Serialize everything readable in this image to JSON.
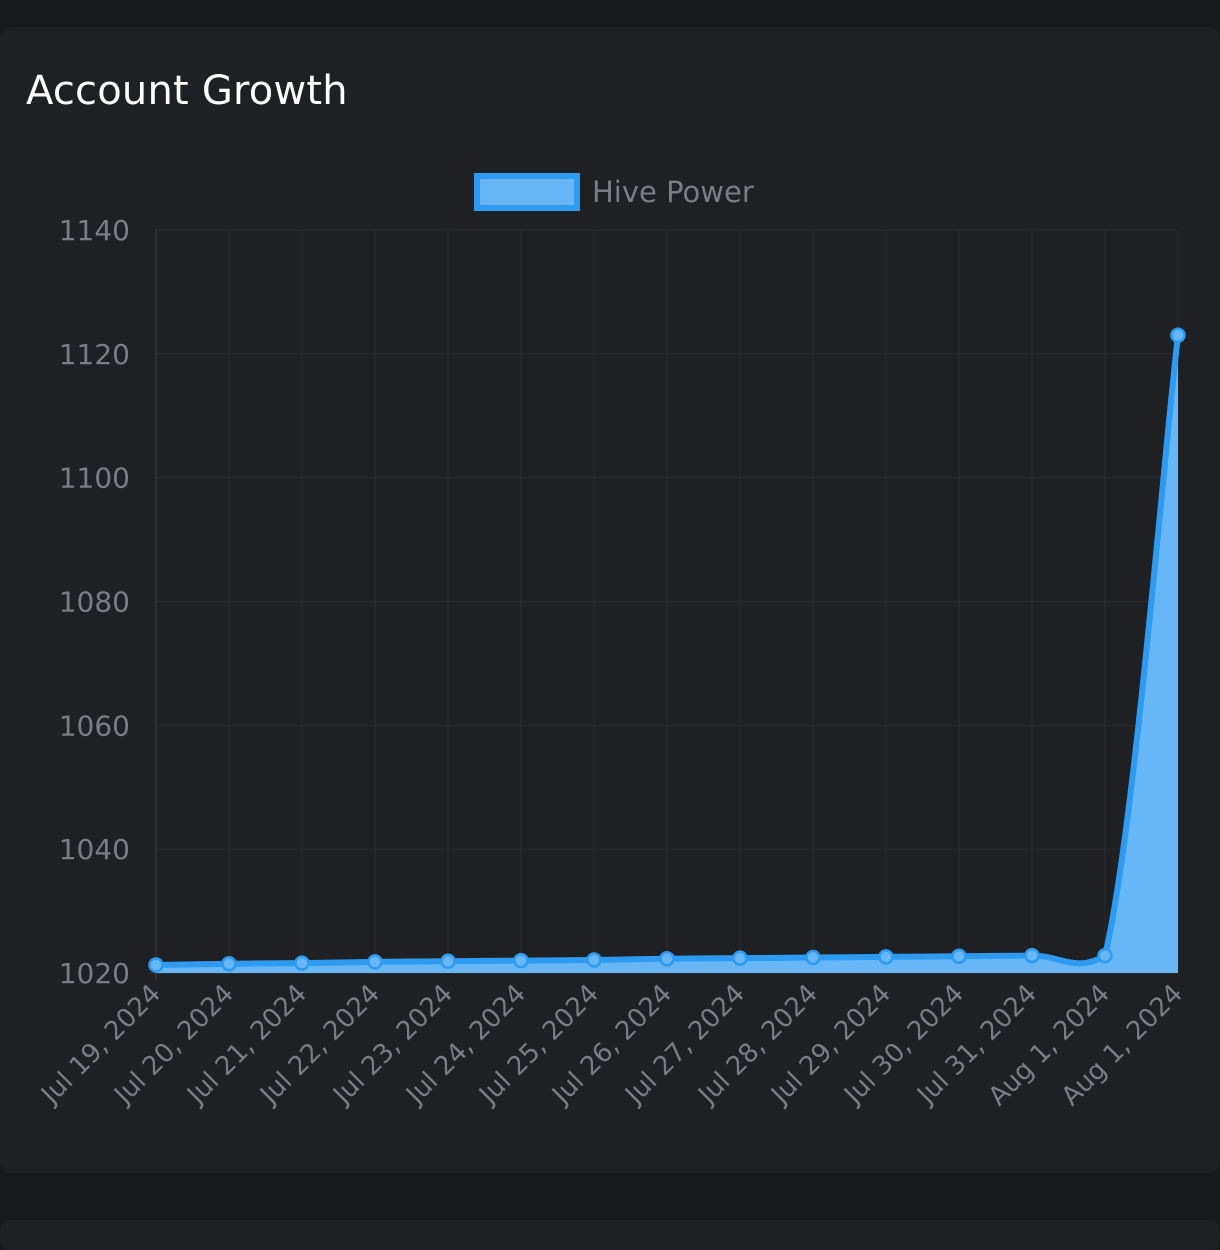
{
  "card": {
    "title": "Account Growth"
  },
  "colors": {
    "line": "#2e9bf0",
    "fill": "#67b7f7",
    "point_fill": "#67b7f7",
    "grid": "#2a2d30",
    "tick_text": "#7a7d81"
  },
  "chart_data": {
    "type": "area",
    "title": "",
    "xlabel": "",
    "ylabel": "",
    "legend": {
      "position": "top-center"
    },
    "grid": true,
    "ylim": [
      1020,
      1140
    ],
    "yticks": [
      1020,
      1040,
      1060,
      1080,
      1100,
      1120,
      1140
    ],
    "x": [
      "Jul 19, 2024",
      "Jul 20, 2024",
      "Jul 21, 2024",
      "Jul 22, 2024",
      "Jul 23, 2024",
      "Jul 24, 2024",
      "Jul 25, 2024",
      "Jul 26, 2024",
      "Jul 27, 2024",
      "Jul 28, 2024",
      "Jul 29, 2024",
      "Jul 30, 2024",
      "Jul 31, 2024",
      "Aug 1, 2024",
      "Aug 1, 2024"
    ],
    "series": [
      {
        "name": "Hive Power",
        "values": [
          1021.3,
          1021.5,
          1021.6,
          1021.8,
          1021.9,
          1022.0,
          1022.1,
          1022.3,
          1022.4,
          1022.5,
          1022.6,
          1022.7,
          1022.8,
          1022.8,
          1123.0
        ]
      }
    ]
  }
}
